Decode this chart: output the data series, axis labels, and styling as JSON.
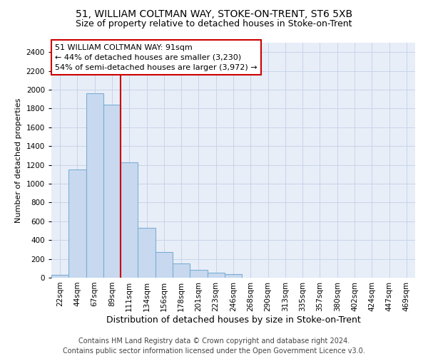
{
  "title": "51, WILLIAM COLTMAN WAY, STOKE-ON-TRENT, ST6 5XB",
  "subtitle": "Size of property relative to detached houses in Stoke-on-Trent",
  "xlabel": "Distribution of detached houses by size in Stoke-on-Trent",
  "ylabel": "Number of detached properties",
  "footer_line1": "Contains HM Land Registry data © Crown copyright and database right 2024.",
  "footer_line2": "Contains public sector information licensed under the Open Government Licence v3.0.",
  "annotation_title": "51 WILLIAM COLTMAN WAY: 91sqm",
  "annotation_line2": "← 44% of detached houses are smaller (3,230)",
  "annotation_line3": "54% of semi-detached houses are larger (3,972) →",
  "bar_labels": [
    "22sqm",
    "44sqm",
    "67sqm",
    "89sqm",
    "111sqm",
    "134sqm",
    "156sqm",
    "178sqm",
    "201sqm",
    "223sqm",
    "246sqm",
    "268sqm",
    "290sqm",
    "313sqm",
    "335sqm",
    "357sqm",
    "380sqm",
    "402sqm",
    "424sqm",
    "447sqm",
    "469sqm"
  ],
  "bar_values": [
    30,
    1150,
    1960,
    1840,
    1230,
    530,
    270,
    150,
    80,
    50,
    40,
    0,
    0,
    0,
    0,
    0,
    0,
    0,
    0,
    0,
    0
  ],
  "bar_color": "#c8d9ef",
  "bar_edge_color": "#7bafd4",
  "vline_color": "#cc0000",
  "vline_x": 3.5,
  "ylim": [
    0,
    2500
  ],
  "yticks": [
    0,
    200,
    400,
    600,
    800,
    1000,
    1200,
    1400,
    1600,
    1800,
    2000,
    2200,
    2400
  ],
  "grid_color": "#c8d4e8",
  "bg_color": "#e8eef8",
  "annotation_box_color": "#cc0000",
  "title_fontsize": 10,
  "subtitle_fontsize": 9,
  "xlabel_fontsize": 9,
  "ylabel_fontsize": 8,
  "tick_fontsize": 7.5,
  "annotation_fontsize": 8,
  "footer_fontsize": 7
}
